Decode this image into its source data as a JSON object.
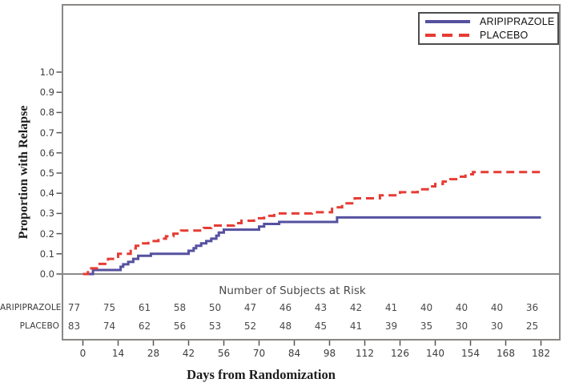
{
  "colors": {
    "aripiprazole_line": "#55519f",
    "placebo_line": "#e63c34",
    "frame": "#8a8784",
    "zero_line": "#8a8a8a",
    "tick_text": "#3b3b3b",
    "title_text": "#1c1c1c"
  },
  "legend": {
    "items": [
      {
        "label": "ARIPIPRAZOLE",
        "line_style": "solid"
      },
      {
        "label": "PLACEBO",
        "line_style": "dashed"
      }
    ]
  },
  "chart_data": {
    "type": "line",
    "subtype": "kaplan-meier-step",
    "title": "",
    "ylabel": "Proportion with Relapse",
    "xlabel": "Days from Randomization",
    "ylim": [
      0.0,
      1.0
    ],
    "xlim": [
      0,
      182
    ],
    "grid": false,
    "legend_position": "top-right",
    "yticks": [
      "0.0",
      "0.1",
      "0.2",
      "0.3",
      "0.4",
      "0.5",
      "0.6",
      "0.7",
      "0.8",
      "0.9",
      "1.0"
    ],
    "xticks": [
      0,
      14,
      28,
      42,
      56,
      70,
      84,
      98,
      112,
      126,
      140,
      154,
      168,
      182
    ],
    "series": [
      {
        "name": "ARIPIPRAZOLE",
        "color": "#55519f",
        "style": "solid",
        "steps": [
          [
            0,
            0
          ],
          [
            4,
            0.02
          ],
          [
            15,
            0.036
          ],
          [
            16,
            0.048
          ],
          [
            18,
            0.06
          ],
          [
            20,
            0.075
          ],
          [
            22,
            0.09
          ],
          [
            27,
            0.1
          ],
          [
            42,
            0.115
          ],
          [
            44,
            0.128
          ],
          [
            45,
            0.14
          ],
          [
            47,
            0.152
          ],
          [
            49,
            0.163
          ],
          [
            51,
            0.175
          ],
          [
            53,
            0.19
          ],
          [
            54,
            0.205
          ],
          [
            56,
            0.22
          ],
          [
            70,
            0.235
          ],
          [
            72,
            0.248
          ],
          [
            78,
            0.258
          ],
          [
            101,
            0.28
          ],
          [
            182,
            0.28
          ]
        ]
      },
      {
        "name": "PLACEBO",
        "color": "#e63c34",
        "style": "dashed",
        "steps": [
          [
            0,
            0
          ],
          [
            2,
            0.028
          ],
          [
            6,
            0.05
          ],
          [
            10,
            0.075
          ],
          [
            14,
            0.1
          ],
          [
            19,
            0.127
          ],
          [
            21,
            0.14
          ],
          [
            23,
            0.152
          ],
          [
            26,
            0.163
          ],
          [
            30,
            0.175
          ],
          [
            33,
            0.187
          ],
          [
            36,
            0.2
          ],
          [
            39,
            0.215
          ],
          [
            48,
            0.228
          ],
          [
            51,
            0.24
          ],
          [
            60,
            0.252
          ],
          [
            63,
            0.264
          ],
          [
            68,
            0.276
          ],
          [
            72,
            0.288
          ],
          [
            76,
            0.3
          ],
          [
            91,
            0.306
          ],
          [
            99,
            0.33
          ],
          [
            103,
            0.35
          ],
          [
            108,
            0.375
          ],
          [
            118,
            0.39
          ],
          [
            126,
            0.405
          ],
          [
            133,
            0.42
          ],
          [
            137,
            0.434
          ],
          [
            140,
            0.446
          ],
          [
            143,
            0.458
          ],
          [
            146,
            0.47
          ],
          [
            149,
            0.482
          ],
          [
            152,
            0.494
          ],
          [
            155,
            0.505
          ],
          [
            182,
            0.505
          ]
        ]
      }
    ],
    "at_risk": {
      "header": "Number of Subjects at Risk",
      "rows": [
        {
          "label": "ARIPIPRAZOLE",
          "values": [
            77,
            75,
            61,
            58,
            50,
            47,
            46,
            43,
            42,
            41,
            40,
            40,
            40,
            36
          ]
        },
        {
          "label": "PLACEBO",
          "values": [
            83,
            74,
            62,
            56,
            53,
            52,
            48,
            45,
            41,
            39,
            35,
            30,
            30,
            25
          ]
        }
      ]
    }
  }
}
